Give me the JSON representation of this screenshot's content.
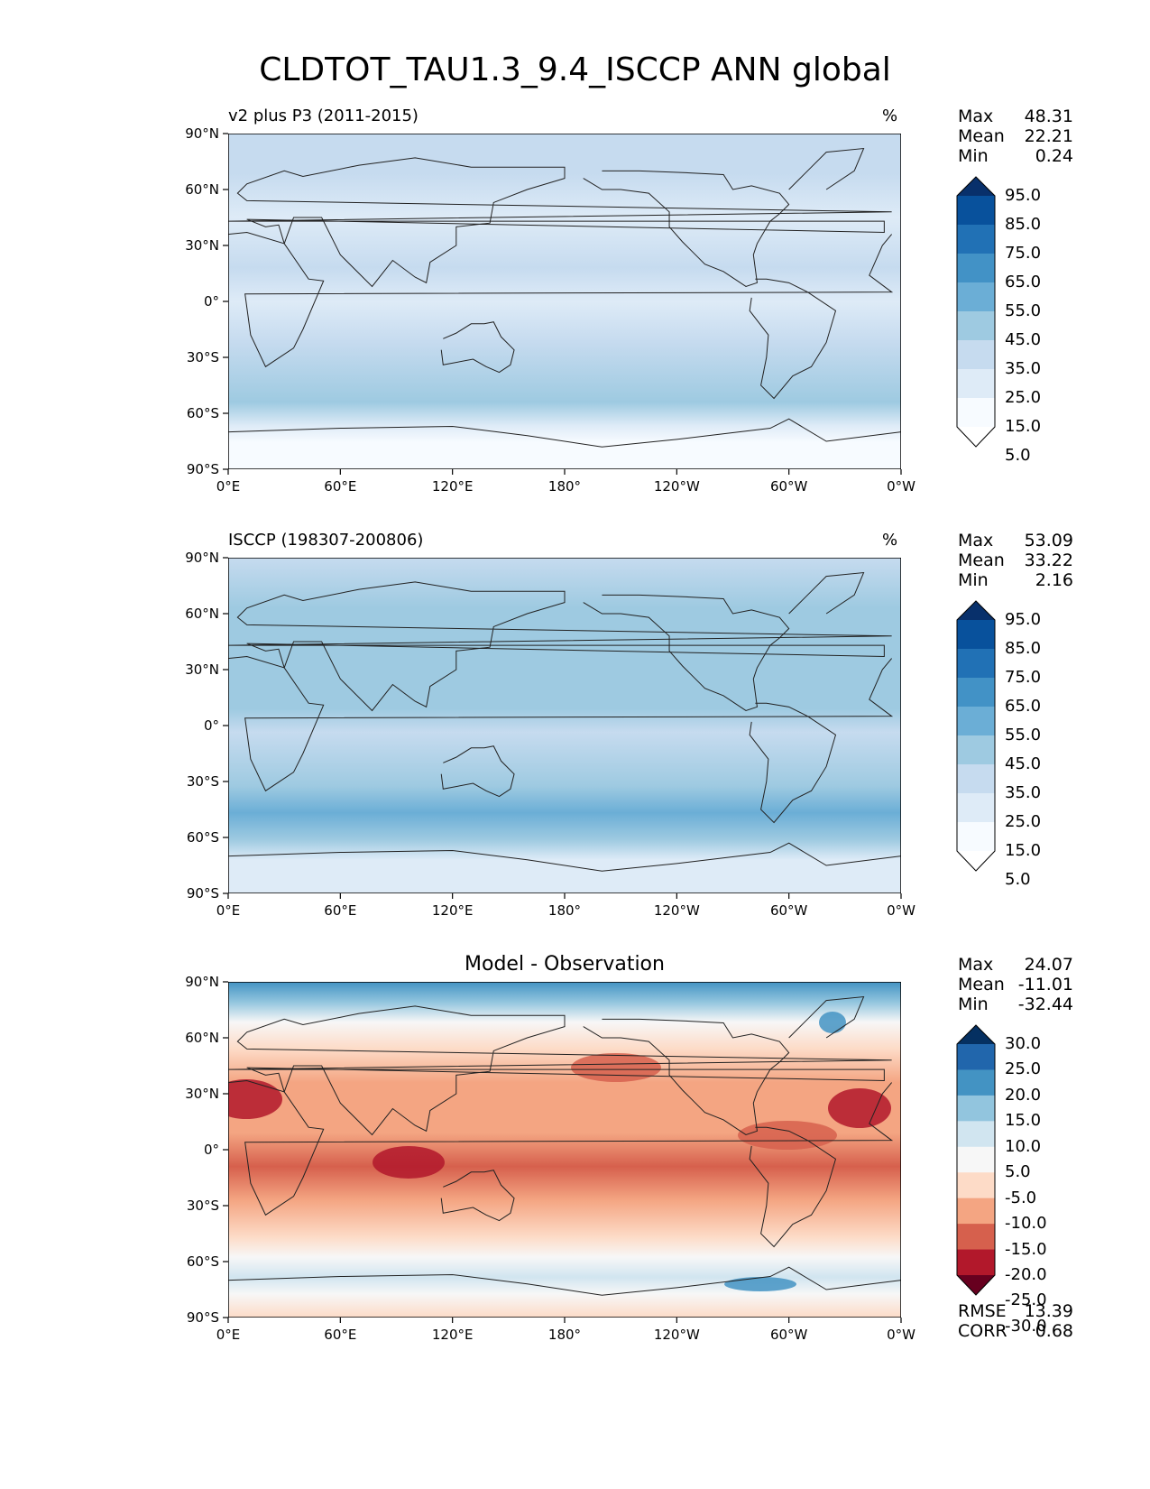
{
  "title": "CLDTOT_TAU1.3_9.4_ISCCP ANN global",
  "panels": [
    {
      "left_title": "v2 plus P3 (2011-2015)",
      "center_title": "",
      "units": "%",
      "stats": {
        "max_label": "Max",
        "max": "48.31",
        "mean_label": "Mean",
        "mean": "22.21",
        "min_label": "Min",
        "min": "0.24"
      },
      "colorbar": {
        "labels": [
          "95.0",
          "85.0",
          "75.0",
          "65.0",
          "55.0",
          "45.0",
          "35.0",
          "25.0",
          "15.0",
          "5.0"
        ],
        "colors": [
          "#08306b",
          "#08519c",
          "#2171b5",
          "#4292c6",
          "#6baed6",
          "#9ecae1",
          "#c6dbef",
          "#deebf7",
          "#f7fbff",
          "#ffffff"
        ]
      }
    },
    {
      "left_title": "ISCCP (198307-200806)",
      "center_title": "",
      "units": "%",
      "stats": {
        "max_label": "Max",
        "max": "53.09",
        "mean_label": "Mean",
        "mean": "33.22",
        "min_label": "Min",
        "min": "2.16"
      },
      "colorbar": {
        "labels": [
          "95.0",
          "85.0",
          "75.0",
          "65.0",
          "55.0",
          "45.0",
          "35.0",
          "25.0",
          "15.0",
          "5.0"
        ],
        "colors": [
          "#08306b",
          "#08519c",
          "#2171b5",
          "#4292c6",
          "#6baed6",
          "#9ecae1",
          "#c6dbef",
          "#deebf7",
          "#f7fbff",
          "#ffffff"
        ]
      }
    },
    {
      "left_title": "",
      "center_title": "Model - Observation",
      "units": "",
      "stats": {
        "max_label": "Max",
        "max": "24.07",
        "mean_label": "Mean",
        "mean": "-11.01",
        "min_label": "Min",
        "min": "-32.44"
      },
      "metrics": {
        "rmse_label": "RMSE",
        "rmse": "13.39",
        "corr_label": "CORR",
        "corr": "0.68"
      },
      "colorbar": {
        "labels": [
          "30.0",
          "25.0",
          "20.0",
          "15.0",
          "10.0",
          "5.0",
          "-5.0",
          "-10.0",
          "-15.0",
          "-20.0",
          "-25.0",
          "-30.0"
        ],
        "colors": [
          "#053061",
          "#2166ac",
          "#4393c3",
          "#92c5de",
          "#d1e5f0",
          "#f7f7f7",
          "#fddbc7",
          "#f4a582",
          "#d6604d",
          "#b2182b",
          "#67001f"
        ]
      }
    }
  ],
  "chart_data": {
    "type": "heatmap",
    "title": "CLDTOT_TAU1.3_9.4_ISCCP ANN global",
    "x_ticks": [
      "0°E",
      "60°E",
      "120°E",
      "180°",
      "120°W",
      "60°W",
      "0°W"
    ],
    "y_ticks": [
      "90°N",
      "60°N",
      "30°N",
      "0°",
      "30°S",
      "60°S",
      "90°S"
    ],
    "x_range": [
      0,
      360
    ],
    "y_range": [
      -90,
      90
    ],
    "subplots": [
      {
        "left_title": "v2 plus P3 (2011-2015)",
        "units": "%",
        "max": 48.31,
        "mean": 22.21,
        "min": 0.24
      },
      {
        "left_title": "ISCCP (198307-200806)",
        "units": "%",
        "max": 53.09,
        "mean": 33.22,
        "min": 2.16
      },
      {
        "title": "Model - Observation",
        "max": 24.07,
        "mean": -11.01,
        "min": -32.44,
        "rmse": 13.39,
        "corr": 0.68
      }
    ]
  }
}
